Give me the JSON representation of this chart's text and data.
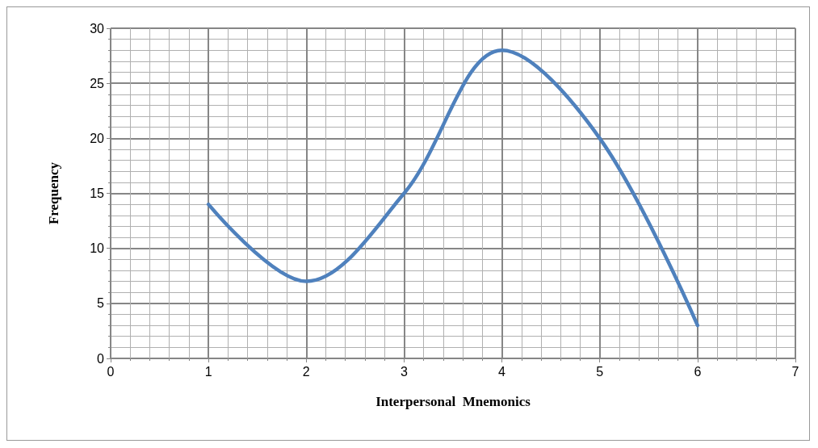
{
  "chart_data": {
    "type": "line",
    "xlabel": "Interpersonal  Mnemonics",
    "ylabel": "Frequency",
    "x": [
      1,
      2,
      3,
      4,
      5,
      6
    ],
    "series": [
      {
        "color": "#4f81bd",
        "values": [
          14,
          7,
          15,
          28,
          20,
          3
        ]
      }
    ],
    "xlim": [
      0,
      7
    ],
    "xticks": [
      0,
      1,
      2,
      3,
      4,
      5,
      6,
      7
    ],
    "ylim": [
      0,
      30
    ],
    "yticks": [
      0,
      5,
      10,
      15,
      20,
      25,
      30
    ],
    "grid": true,
    "marker": "none",
    "line_style": "solid"
  }
}
